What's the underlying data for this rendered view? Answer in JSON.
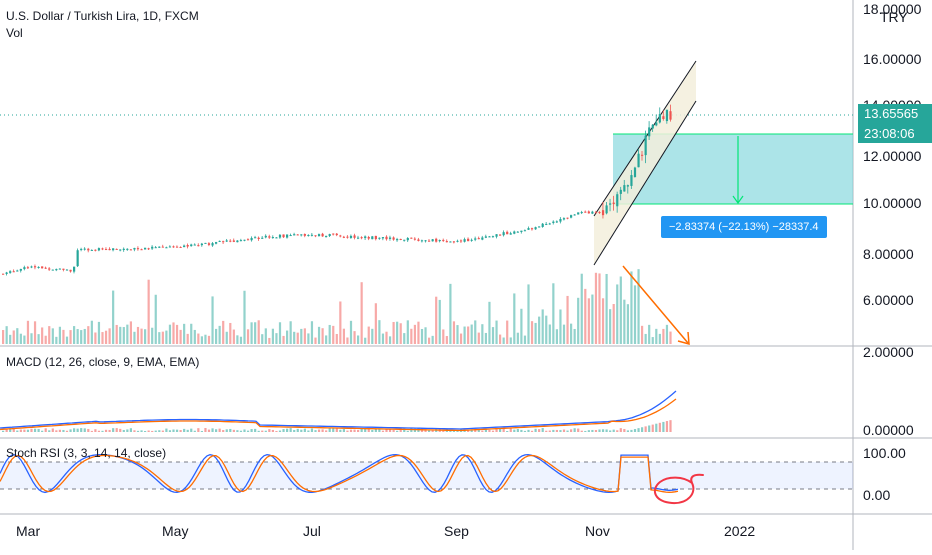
{
  "header": {
    "title": "U.S. Dollar / Turkish Lira, 1D, FXCM",
    "vol_label": "Vol",
    "currency": "TRY"
  },
  "indicators": {
    "macd_label": "MACD (12, 26, close, 9, EMA, EMA)",
    "rsi_label": "Stoch RSI (3, 3, 14, 14, close)"
  },
  "price_axis": {
    "ticks": [
      "18.00000",
      "16.00000",
      "14.00000",
      "12.00000",
      "10.00000",
      "8.00000",
      "6.00000"
    ],
    "current_price": "13.65565",
    "countdown": "23:08:06"
  },
  "macd_axis": {
    "ticks": [
      "2.00000",
      "0.00000"
    ]
  },
  "rsi_axis": {
    "ticks": [
      "100.00",
      "0.00"
    ]
  },
  "time_axis": {
    "labels": [
      "Mar",
      "May",
      "Jul",
      "Sep",
      "Nov",
      "2022"
    ]
  },
  "measurement": {
    "label": "−2.83374 (−22.13%) −28337.4",
    "from_price": 12.8,
    "to_price": 9.97
  },
  "colors": {
    "up": "#26a69a",
    "down": "#ef5350",
    "macd_line": "#2962ff",
    "signal_line": "#ff6d00",
    "measure_fill": "#7fd6dc",
    "measure_line": "#00e676",
    "channel_fill": "#f3efdc",
    "arrow": "#ff6d00",
    "annotation": "#f23645",
    "badge": "#26a69a",
    "measure_label": "#2196f3"
  },
  "chart_data": {
    "type": "candlestick",
    "symbol": "USDTRY",
    "interval": "1D",
    "price_range": [
      5.0,
      18.0
    ],
    "approx_close_path": [
      {
        "date": "2021-02-15",
        "close": 7.0
      },
      {
        "date": "2021-03-01",
        "close": 7.4
      },
      {
        "date": "2021-03-20",
        "close": 7.2
      },
      {
        "date": "2021-03-22",
        "close": 8.1
      },
      {
        "date": "2021-04-15",
        "close": 8.1
      },
      {
        "date": "2021-05-15",
        "close": 8.3
      },
      {
        "date": "2021-06-10",
        "close": 8.6
      },
      {
        "date": "2021-07-01",
        "close": 8.7
      },
      {
        "date": "2021-08-01",
        "close": 8.55
      },
      {
        "date": "2021-09-01",
        "close": 8.4
      },
      {
        "date": "2021-10-01",
        "close": 8.9
      },
      {
        "date": "2021-10-25",
        "close": 9.6
      },
      {
        "date": "2021-11-05",
        "close": 9.7
      },
      {
        "date": "2021-11-15",
        "close": 10.9
      },
      {
        "date": "2021-11-22",
        "close": 12.8
      },
      {
        "date": "2021-11-30",
        "close": 13.66
      }
    ]
  }
}
